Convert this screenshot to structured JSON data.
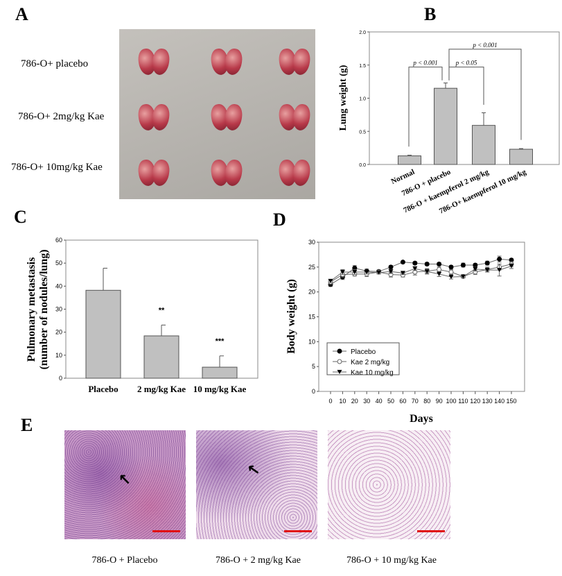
{
  "panels": {
    "a": "A",
    "b": "B",
    "c": "C",
    "d": "D",
    "e": "E"
  },
  "panel_a": {
    "rows": [
      "786-O+ placebo",
      "786-O+ 2mg/kg Kae",
      "786-O+ 10mg/kg Kae"
    ]
  },
  "panel_e": {
    "captions": [
      "786-O + Placebo",
      "786-O + 2 mg/kg Kae",
      "786-O + 10 mg/kg Kae"
    ],
    "scale_bar_color": "#e01010"
  },
  "chart_data": [
    {
      "id": "B",
      "type": "bar",
      "categories": [
        "Normal",
        "786-O + placebo",
        "786-O + kaempferol 2 mg/kg",
        "786-O+ kaempferol 10 mg/kg"
      ],
      "values": [
        0.13,
        1.15,
        0.59,
        0.23
      ],
      "errors": [
        0.01,
        0.08,
        0.19,
        0.01
      ],
      "ylabel": "Lung weight (g)",
      "xlabel": "",
      "ylim": [
        0,
        2.0
      ],
      "yticks": [
        "0.0",
        "0.5",
        "1.0",
        "1.5",
        "2.0"
      ],
      "bar_color": "#c0c0c0",
      "annotations": [
        {
          "from": 0,
          "to": 1,
          "text": "p < 0.001"
        },
        {
          "from": 1,
          "to": 2,
          "text": "p < 0.05"
        },
        {
          "from": 1,
          "to": 3,
          "text": "p < 0.001"
        }
      ]
    },
    {
      "id": "C",
      "type": "bar",
      "categories": [
        "Placebo",
        "2 mg/kg Kae",
        "10 mg/kg Kae"
      ],
      "values": [
        38.2,
        18.4,
        4.8
      ],
      "errors": [
        9.6,
        4.7,
        4.9
      ],
      "significance": [
        "",
        "**",
        "***"
      ],
      "ylabel": [
        "Pulmonary metastasis",
        "(number of nodules/lung)"
      ],
      "ylim": [
        0,
        60
      ],
      "yticks": [
        "0",
        "10",
        "20",
        "30",
        "40",
        "50",
        "60"
      ],
      "bar_color": "#c0c0c0"
    },
    {
      "id": "D",
      "type": "line",
      "x": [
        0,
        10,
        20,
        30,
        40,
        50,
        60,
        70,
        80,
        90,
        100,
        110,
        120,
        130,
        140,
        150
      ],
      "xticks": [
        "0",
        "10",
        "20",
        "30",
        "40",
        "50",
        "60",
        "70",
        "80",
        "90",
        "100",
        "110",
        "120",
        "130",
        "140",
        "150"
      ],
      "ylim": [
        0,
        30
      ],
      "yticks": [
        "0",
        "5",
        "10",
        "15",
        "20",
        "25",
        "30"
      ],
      "xlabel": "Days",
      "ylabel": "Body weight (g)",
      "legend_position": "bottom-left",
      "series": [
        {
          "name": "Placebo",
          "marker": "filled-circle",
          "values": [
            21.5,
            23.0,
            24.8,
            24.2,
            24.1,
            25.0,
            26.0,
            25.8,
            25.6,
            25.6,
            25.0,
            25.4,
            25.4,
            25.8,
            26.6,
            26.4
          ],
          "errors": [
            0.4,
            0.5,
            0.5,
            0.4,
            0.3,
            0.3,
            0.2,
            0.3,
            0.3,
            0.3,
            0.3,
            0.4,
            0.3,
            0.4,
            0.6,
            0.3
          ]
        },
        {
          "name": "Kae 2 mg/kg",
          "marker": "open-circle",
          "values": [
            22.0,
            23.5,
            23.6,
            23.6,
            24.0,
            23.5,
            23.4,
            24.0,
            24.2,
            24.5,
            24.0,
            23.1,
            24.0,
            24.5,
            25.0,
            25.6
          ],
          "errors": [
            0.4,
            0.5,
            0.4,
            0.5,
            0.3,
            0.5,
            0.4,
            0.6,
            0.5,
            0.5,
            0.5,
            0.3,
            0.5,
            0.5,
            0.6,
            0.5
          ]
        },
        {
          "name": "Kae 10 mg/kg",
          "marker": "filled-triangle-down",
          "values": [
            22.2,
            24.0,
            24.0,
            24.0,
            23.9,
            24.1,
            23.8,
            24.7,
            24.1,
            23.6,
            23.0,
            23.1,
            24.6,
            24.4,
            24.4,
            25.2
          ],
          "errors": [
            0.3,
            0.5,
            0.5,
            0.4,
            0.3,
            0.4,
            0.3,
            0.4,
            0.5,
            0.5,
            0.4,
            0.2,
            0.4,
            0.4,
            1.2,
            0.5
          ]
        }
      ]
    }
  ]
}
